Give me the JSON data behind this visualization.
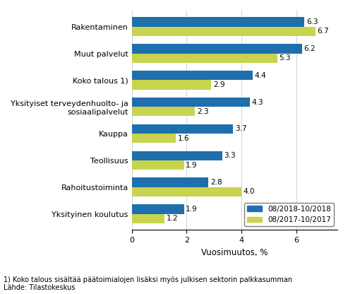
{
  "categories": [
    "Yksityinen koulutus",
    "Rahoitustoiminta",
    "Teollisuus",
    "Kauppa",
    "Yksityiset terveydenhuolto- ja\nsosiaalipalvelut",
    "Koko talous 1)",
    "Muut palvelut",
    "Rakentaminen"
  ],
  "values_2018": [
    1.9,
    2.8,
    3.3,
    3.7,
    4.3,
    4.4,
    6.2,
    6.3
  ],
  "values_2017": [
    1.2,
    4.0,
    1.9,
    1.6,
    2.3,
    2.9,
    5.3,
    6.7
  ],
  "color_2018": "#1f6fad",
  "color_2017": "#c8d44e",
  "xlabel": "Vuosimuutos, %",
  "legend_2018": "08/2018-10/2018",
  "legend_2017": "08/2017-10/2017",
  "xlim": [
    0,
    7.5
  ],
  "footnote1": "1) Koko talous sisältää päätoimialojen lisäksi myös julkisen sektorin palkkasumman",
  "footnote2": "Lähde: Tilastokeskus",
  "bar_height": 0.35,
  "label_fontsize": 7.5,
  "tick_fontsize": 8,
  "xlabel_fontsize": 8.5,
  "legend_fontsize": 7.5
}
